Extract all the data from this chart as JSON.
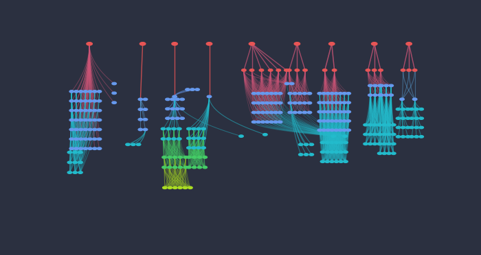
{
  "bg": "#2b3040",
  "fig_w": 7.0,
  "fig_h": 3.72,
  "RED": "#e85555",
  "PINK": "#cc5577",
  "BLUE": "#6699ee",
  "TEAL": "#22bbcc",
  "CYAN": "#33ccbb",
  "GREEN": "#44cc66",
  "YGREEN": "#aadd22",
  "LTBLUE": "#5599cc",
  "node_r": 0.006
}
